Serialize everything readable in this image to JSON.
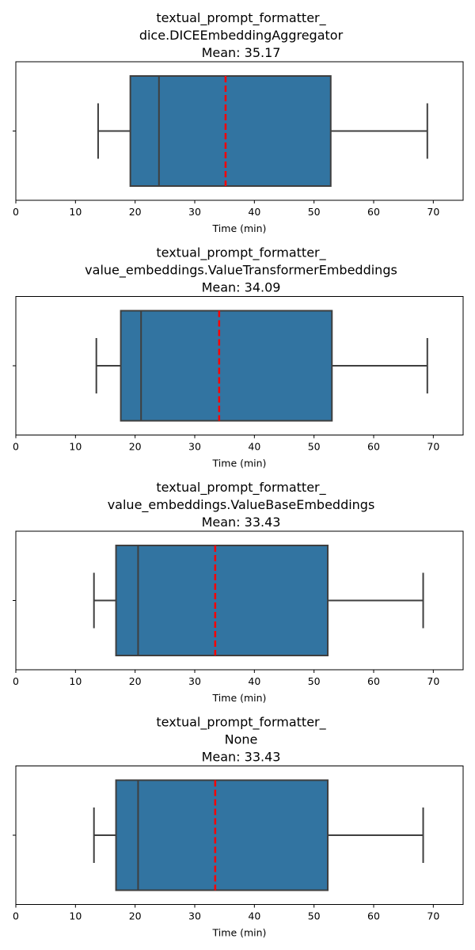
{
  "chart_data": [
    {
      "type": "box",
      "title_lines": [
        "textual_prompt_formatter_",
        "dice.DICEEmbeddingAggregator",
        "Mean: 35.17"
      ],
      "xlabel": "Time (min)",
      "xlim": [
        0,
        75
      ],
      "xticks": [
        0,
        10,
        20,
        30,
        40,
        50,
        60,
        70
      ],
      "box": {
        "whisker_low": 13.8,
        "q1": 19.2,
        "median": 24.0,
        "q3": 52.8,
        "whisker_high": 69.0,
        "mean": 35.17
      },
      "box_color": "#3274a1",
      "mean_line_color": "#ff0000"
    },
    {
      "type": "box",
      "title_lines": [
        "textual_prompt_formatter_",
        "value_embeddings.ValueTransformerEmbeddings",
        "Mean: 34.09"
      ],
      "xlabel": "Time (min)",
      "xlim": [
        0,
        75
      ],
      "xticks": [
        0,
        10,
        20,
        30,
        40,
        50,
        60,
        70
      ],
      "box": {
        "whisker_low": 13.5,
        "q1": 17.6,
        "median": 21.0,
        "q3": 53.0,
        "whisker_high": 69.0,
        "mean": 34.09
      },
      "box_color": "#3274a1",
      "mean_line_color": "#ff0000"
    },
    {
      "type": "box",
      "title_lines": [
        "textual_prompt_formatter_",
        "value_embeddings.ValueBaseEmbeddings",
        "Mean: 33.43"
      ],
      "xlabel": "Time (min)",
      "xlim": [
        0,
        75
      ],
      "xticks": [
        0,
        10,
        20,
        30,
        40,
        50,
        60,
        70
      ],
      "box": {
        "whisker_low": 13.1,
        "q1": 16.8,
        "median": 20.5,
        "q3": 52.3,
        "whisker_high": 68.3,
        "mean": 33.43
      },
      "box_color": "#3274a1",
      "mean_line_color": "#ff0000"
    },
    {
      "type": "box",
      "title_lines": [
        "textual_prompt_formatter_",
        "None",
        "Mean: 33.43"
      ],
      "xlabel": "Time (min)",
      "xlim": [
        0,
        75
      ],
      "xticks": [
        0,
        10,
        20,
        30,
        40,
        50,
        60,
        70
      ],
      "box": {
        "whisker_low": 13.1,
        "q1": 16.8,
        "median": 20.5,
        "q3": 52.3,
        "whisker_high": 68.3,
        "mean": 33.43
      },
      "box_color": "#3274a1",
      "mean_line_color": "#ff0000"
    }
  ]
}
